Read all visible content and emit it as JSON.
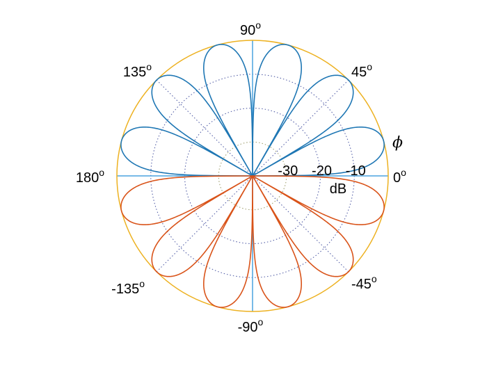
{
  "chart_data": {
    "type": "polar",
    "angle_ticks": [
      {
        "deg": 0,
        "label": "0",
        "sup": "o"
      },
      {
        "deg": 45,
        "label": "45",
        "sup": "o"
      },
      {
        "deg": 90,
        "label": "90",
        "sup": "o"
      },
      {
        "deg": 135,
        "label": "135",
        "sup": "o"
      },
      {
        "deg": 180,
        "label": "180",
        "sup": "o"
      },
      {
        "deg": -135,
        "label": "-135",
        "sup": "o"
      },
      {
        "deg": -90,
        "label": "-90",
        "sup": "o"
      },
      {
        "deg": -45,
        "label": "-45",
        "sup": "o"
      }
    ],
    "radial_ticks": [
      {
        "value": -30,
        "label": "-30"
      },
      {
        "value": -20,
        "label": "-20"
      },
      {
        "value": -10,
        "label": "-10"
      }
    ],
    "radial_unit": "dB",
    "radial_range_db": [
      -40,
      0
    ],
    "angle_symbol": "ϕ",
    "grid": true,
    "lobe_count_per_half": 6,
    "series": [
      {
        "half": "upper",
        "color": "#1f77b4",
        "peak_db": 0
      },
      {
        "half": "lower",
        "color": "#d95319",
        "peak_db": 0
      }
    ],
    "colors": {
      "outer_ring": "#edb120",
      "axis_lines": "#4aa3df",
      "grid_dotted": "#5560a8",
      "grid_inner": "#a0a070"
    }
  }
}
